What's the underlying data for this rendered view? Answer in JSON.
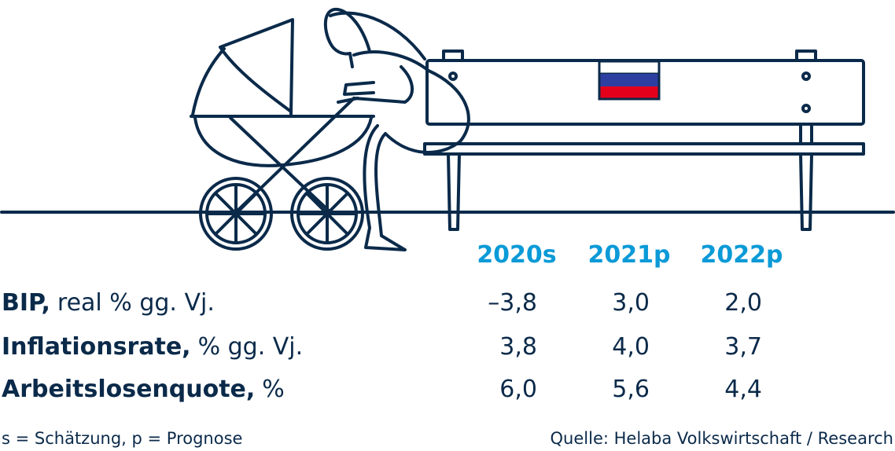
{
  "table": {
    "columns": [
      "2020s",
      "2021p",
      "2022p"
    ],
    "rows": [
      {
        "label_bold": "BIP,",
        "label": "real % gg. Vj.",
        "values": [
          "–3,8",
          "3,0",
          "2,0"
        ]
      },
      {
        "label_bold": "Inflationsrate,",
        "label": "% gg. Vj.",
        "values": [
          "3,8",
          "4,0",
          "3,7"
        ]
      },
      {
        "label_bold": "Arbeitslosenquote,",
        "label": "%",
        "values": [
          "6,0",
          "5,6",
          "4,4"
        ]
      }
    ]
  },
  "footer": {
    "note": "s = Schätzung, p = Prognose",
    "source": "Quelle: Helaba Volkswirtschaft / Research"
  }
}
